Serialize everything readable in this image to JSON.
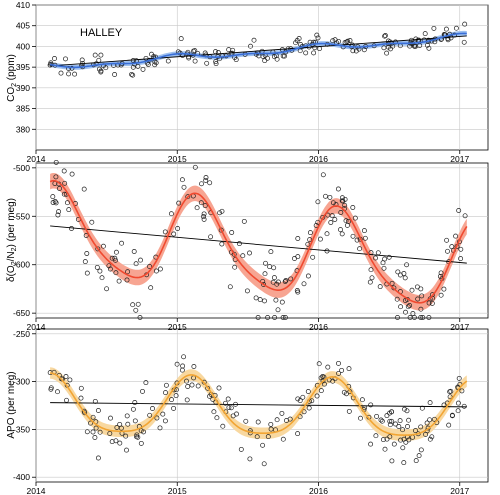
{
  "colors": {
    "co2": "#3a6fd8",
    "co2_band": "#9ec0ef",
    "o2n2": "#f04a30",
    "o2n2_band": "#f7a592",
    "apo": "#f2a533",
    "apo_band": "#f8d8a0",
    "trend": "#000000",
    "points": "#222222"
  },
  "chart_data": [
    {
      "type": "scatter",
      "id": "co2",
      "annotation": "HALLEY",
      "ylabel_main": "CO",
      "ylabel_sub": "2",
      "ylabel_rest": " (ppm)",
      "xlim": [
        2014.0,
        2017.2
      ],
      "ylim": [
        375,
        410
      ],
      "xticks": [
        2014,
        2015,
        2016,
        2017
      ],
      "yticks": [
        380,
        385,
        390,
        395,
        400,
        405,
        410
      ],
      "grid": true,
      "fit": {
        "mean": 395.0,
        "slope": 2.45,
        "amp1": 0.6,
        "phase1": 1.0,
        "amp2": 0.4,
        "phase2": 2.0
      },
      "trend": {
        "start": 395.3,
        "slope": 2.45
      },
      "band_halfwidth": 0.6,
      "scatter_noise": 1.1,
      "points_count": 190
    },
    {
      "type": "scatter",
      "id": "o2n2",
      "ylabel_main": "δ(O",
      "ylabel_sub": "2",
      "ylabel_rest": "/N",
      "ylabel_sub2": "2",
      "ylabel_rest2": ") (per meg)",
      "xlim": [
        2014.0,
        2017.2
      ],
      "ylim": [
        -655,
        -495
      ],
      "xticks": [
        2014,
        2015,
        2016,
        2017
      ],
      "yticks": [
        -650,
        -600,
        -550,
        -500
      ],
      "grid": true,
      "fit": {
        "mean": -565.0,
        "slope": -13.0,
        "amp1": 45.0,
        "phase1": 0.15,
        "amp2": 8.0,
        "phase2": 0.6
      },
      "trend": {
        "start": -560.0,
        "slope": -13.0
      },
      "band_halfwidth": 8,
      "scatter_noise": 18,
      "points_count": 230
    },
    {
      "type": "scatter",
      "id": "apo",
      "ylabel_main": "APO (per meg)",
      "xlim": [
        2014.0,
        2017.2
      ],
      "ylim": [
        -405,
        -245
      ],
      "xticks": [
        2014,
        2015,
        2016,
        2017
      ],
      "yticks": [
        -400,
        -350,
        -300,
        -250
      ],
      "grid": true,
      "fit": {
        "mean": -327.0,
        "slope": -2.0,
        "amp1": 30.0,
        "phase1": 0.1,
        "amp2": 6.0,
        "phase2": 0.6
      },
      "trend": {
        "start": -322.0,
        "slope": -1.5
      },
      "band_halfwidth": 6,
      "scatter_noise": 14,
      "points_count": 220
    }
  ]
}
